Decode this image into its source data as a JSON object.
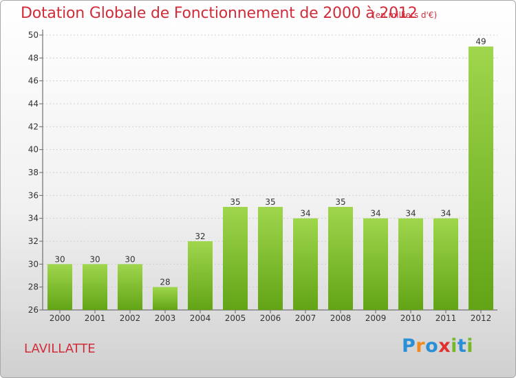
{
  "header": {
    "title": "Dotation Globale de Fonctionnement de 2000 à 2012",
    "subtitle": "(en milliers d'€)"
  },
  "footer": {
    "commune": "LAVILLATTE",
    "logo_text": "Proxiti",
    "logo_letters": [
      {
        "char": "P",
        "color": "#2a8fd6"
      },
      {
        "char": "r",
        "color": "#f08a1c"
      },
      {
        "char": "o",
        "color": "#2a8fd6"
      },
      {
        "char": "x",
        "color": "#e0302f"
      },
      {
        "char": "i",
        "color": "#77b828"
      },
      {
        "char": "t",
        "color": "#2a8fd6"
      },
      {
        "char": "i",
        "color": "#77b828"
      }
    ]
  },
  "colors": {
    "title": "#d02c3a",
    "bar_top": "#9fd64d",
    "bar_bottom": "#62a416"
  },
  "chart_data": {
    "type": "bar",
    "title": "Dotation Globale de Fonctionnement de 2000 à 2012",
    "subtitle": "(en milliers d'€)",
    "categories": [
      "2000",
      "2001",
      "2002",
      "2003",
      "2004",
      "2005",
      "2006",
      "2007",
      "2008",
      "2009",
      "2010",
      "2011",
      "2012"
    ],
    "values": [
      30,
      30,
      30,
      28,
      32,
      35,
      35,
      34,
      35,
      34,
      34,
      34,
      49
    ],
    "xlabel": "",
    "ylabel": "",
    "ylim": [
      26,
      50
    ],
    "yticks": [
      26,
      28,
      30,
      32,
      34,
      36,
      38,
      40,
      42,
      44,
      46,
      48,
      50
    ],
    "grid": true
  }
}
